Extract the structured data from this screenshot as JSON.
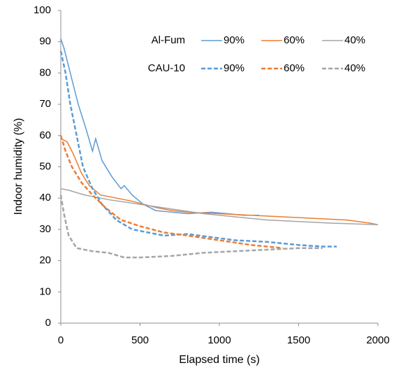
{
  "chart_data": {
    "type": "line",
    "x_label": "Elapsed time (s)",
    "y_label": "Indoor humidity (%)",
    "xlim": [
      0,
      2000
    ],
    "xticks": [
      0,
      500,
      1000,
      1500,
      2000
    ],
    "ylim": [
      0,
      100
    ],
    "yticks": [
      0,
      10,
      20,
      30,
      40,
      50,
      60,
      70,
      80,
      90,
      100
    ],
    "grid": false,
    "series": [
      {
        "name": "90%",
        "group": "Al-Fum",
        "dashed": false,
        "color": "#5b9bd5",
        "x": [
          0,
          20,
          60,
          110,
          160,
          200,
          220,
          260,
          320,
          380,
          400,
          450,
          520,
          600,
          700,
          800,
          950,
          1050,
          1150,
          1250
        ],
        "values": [
          91,
          88,
          80,
          70,
          62,
          55,
          59,
          52,
          47,
          43,
          44,
          41,
          38,
          36,
          35.5,
          35,
          35.5,
          35,
          34.5,
          34.5
        ]
      },
      {
        "name": "60%",
        "group": "Al-Fum",
        "dashed": false,
        "color": "#ed7d31",
        "x": [
          0,
          40,
          80,
          130,
          180,
          250,
          350,
          450,
          600,
          700,
          800,
          1000,
          1200,
          1400,
          1600,
          1800,
          1950,
          2000
        ],
        "values": [
          59,
          58,
          54,
          48,
          44,
          41,
          40,
          39,
          37,
          36,
          35.5,
          35,
          34.5,
          34,
          33.5,
          33,
          32,
          31.5
        ]
      },
      {
        "name": "40%",
        "group": "Al-Fum",
        "dashed": false,
        "color": "#a5a5a5",
        "x": [
          0,
          50,
          150,
          300,
          500,
          700,
          900,
          1100,
          1300,
          1500,
          1700,
          2000
        ],
        "values": [
          43,
          42.5,
          41,
          39.5,
          38,
          36.5,
          35,
          34,
          33,
          32.5,
          32,
          31.5
        ]
      },
      {
        "name": "90%",
        "group": "CAU-10",
        "dashed": true,
        "color": "#5b9bd5",
        "x": [
          0,
          30,
          60,
          100,
          140,
          200,
          260,
          350,
          450,
          550,
          650,
          800,
          950,
          1100,
          1300,
          1500,
          1650,
          1740
        ],
        "values": [
          87,
          80,
          70,
          60,
          50,
          43,
          38,
          33,
          30,
          29,
          28,
          28.5,
          27.5,
          26.5,
          26,
          25,
          24.5,
          24.5
        ]
      },
      {
        "name": "60%",
        "group": "CAU-10",
        "dashed": true,
        "color": "#ed7d31",
        "x": [
          0,
          30,
          70,
          130,
          200,
          280,
          380,
          500,
          650,
          800,
          1000,
          1200,
          1400
        ],
        "values": [
          60,
          55,
          50,
          45,
          41,
          37,
          33,
          31,
          29,
          28,
          26.5,
          25,
          24
        ]
      },
      {
        "name": "40%",
        "group": "CAU-10",
        "dashed": true,
        "color": "#a5a5a5",
        "x": [
          0,
          20,
          50,
          100,
          200,
          300,
          400,
          500,
          700,
          900,
          1100,
          1300,
          1500,
          1650
        ],
        "values": [
          41,
          35,
          28,
          24,
          23,
          22.5,
          21,
          21,
          21.5,
          22.5,
          23,
          23.5,
          24,
          24
        ]
      }
    ]
  }
}
